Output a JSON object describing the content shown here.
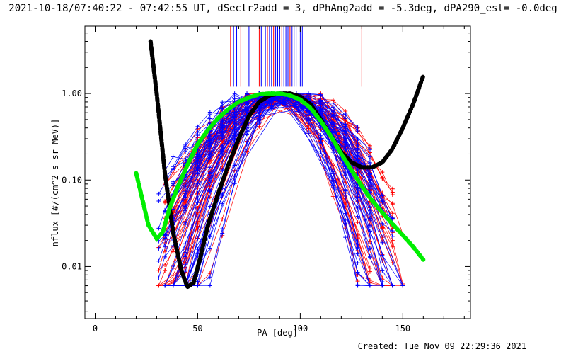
{
  "header": {
    "title": "2021-10-18/07:40:22 - 07:42:55 UT, dSectr2add = 3, dPhAng2add = -5.3deg, dPA290_est= -0.0deg"
  },
  "footer": {
    "created": "Created: Tue Nov 09 22:29:36 2021"
  },
  "chart_data": {
    "type": "line",
    "xlabel": "PA [deg]",
    "ylabel": "nflux [#/(cm^2 s sr MeV)]",
    "xlim": [
      -5,
      183
    ],
    "ylim": [
      0.0025,
      6.0
    ],
    "yscale": "log",
    "x_ticks": [
      0,
      50,
      100,
      150
    ],
    "x_tick_labels": [
      "0",
      "50",
      "100",
      "150"
    ],
    "y_ticks": [
      0.01,
      0.1,
      1.0
    ],
    "y_tick_labels": [
      "0.01",
      "0.10",
      "1.00"
    ],
    "grid": false,
    "legend": "none",
    "colors": {
      "red": "#ff0000",
      "blue": "#0000ff",
      "black": "#000000",
      "green": "#00ee00"
    },
    "curves": [
      {
        "color": "#000000",
        "style": "thick-dashed",
        "x": [
          27,
          30,
          34,
          38,
          42,
          45,
          48,
          51,
          55,
          60,
          65,
          70,
          75,
          80,
          85,
          90,
          95,
          100,
          105,
          110,
          115,
          120,
          125,
          130,
          135,
          140,
          145,
          150,
          155,
          160
        ],
        "y": [
          4.0,
          1.0,
          0.12,
          0.025,
          0.009,
          0.0058,
          0.0065,
          0.012,
          0.03,
          0.07,
          0.15,
          0.3,
          0.55,
          0.8,
          0.95,
          1.0,
          1.0,
          0.92,
          0.75,
          0.5,
          0.32,
          0.21,
          0.16,
          0.14,
          0.14,
          0.16,
          0.23,
          0.4,
          0.75,
          1.6
        ]
      },
      {
        "color": "#00ee00",
        "style": "thick-dashed",
        "x": [
          20,
          23,
          26,
          30,
          33,
          36,
          40,
          45,
          50,
          55,
          60,
          65,
          70,
          75,
          80,
          85,
          90,
          95,
          100,
          105,
          110,
          115,
          120,
          125,
          130,
          135,
          140,
          145,
          150,
          155,
          160
        ],
        "y": [
          0.12,
          0.06,
          0.03,
          0.021,
          0.025,
          0.045,
          0.08,
          0.15,
          0.26,
          0.38,
          0.52,
          0.66,
          0.8,
          0.9,
          0.98,
          1.0,
          1.0,
          0.95,
          0.85,
          0.68,
          0.48,
          0.32,
          0.2,
          0.13,
          0.085,
          0.058,
          0.042,
          0.031,
          0.023,
          0.017,
          0.012
        ]
      }
    ],
    "vertical_markers": [
      {
        "x": 66,
        "color": "#ff0000"
      },
      {
        "x": 67.5,
        "color": "#0000ff"
      },
      {
        "x": 69,
        "color": "#0000ff"
      },
      {
        "x": 71,
        "color": "#ff0000"
      },
      {
        "x": 75,
        "color": "#0000ff"
      },
      {
        "x": 80,
        "color": "#ff0000"
      },
      {
        "x": 81,
        "color": "#0000ff"
      },
      {
        "x": 83,
        "color": "#0000ff"
      },
      {
        "x": 84,
        "color": "#ff0000"
      },
      {
        "x": 85,
        "color": "#0000ff"
      },
      {
        "x": 86,
        "color": "#0000ff"
      },
      {
        "x": 87,
        "color": "#ff0000"
      },
      {
        "x": 88,
        "color": "#0000ff"
      },
      {
        "x": 89,
        "color": "#0000ff"
      },
      {
        "x": 90,
        "color": "#0000ff"
      },
      {
        "x": 91,
        "color": "#ff0000"
      },
      {
        "x": 92,
        "color": "#0000ff"
      },
      {
        "x": 93,
        "color": "#0000ff"
      },
      {
        "x": 94,
        "color": "#0000ff"
      },
      {
        "x": 95,
        "color": "#ff0000"
      },
      {
        "x": 96,
        "color": "#0000ff"
      },
      {
        "x": 97,
        "color": "#0000ff"
      },
      {
        "x": 98,
        "color": "#0000ff"
      },
      {
        "x": 100,
        "color": "#0000ff"
      },
      {
        "x": 101,
        "color": "#0000ff"
      },
      {
        "x": 130,
        "color": "#ff0000"
      }
    ],
    "scatter_series": [
      {
        "color": "#ff0000",
        "count": 60,
        "description_of_family": "red measured distributions"
      },
      {
        "color": "#0000ff",
        "count": 60,
        "description_of_family": "blue measured distributions"
      }
    ]
  }
}
